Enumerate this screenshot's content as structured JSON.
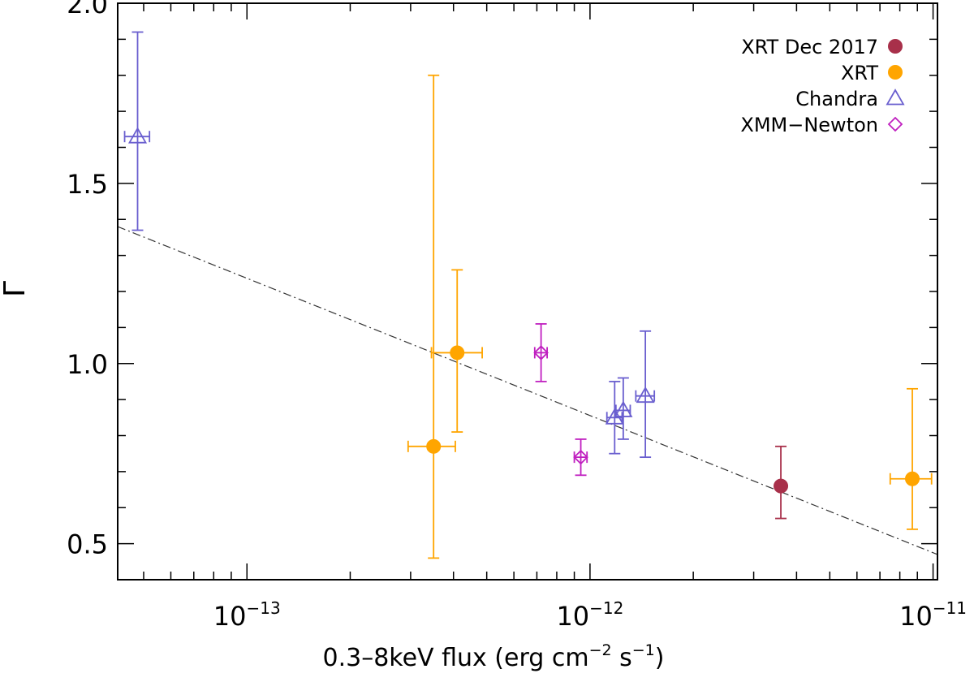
{
  "chart_data": {
    "type": "scatter",
    "title": "",
    "xlabel_main": "0.3–8keV flux (erg cm",
    "xlabel_exp1": "−2",
    "xlabel_mid": " s",
    "xlabel_exp2": "−1",
    "xlabel_tail": ")",
    "ylabel": "Γ",
    "xscale": "log",
    "xlim": [
      4.2e-14,
      1.03e-11
    ],
    "ylim": [
      0.4,
      2.0
    ],
    "xticks": [
      {
        "value": 1e-13,
        "base": "10",
        "exp": "−13"
      },
      {
        "value": 1e-12,
        "base": "10",
        "exp": "−12"
      },
      {
        "value": 1e-11,
        "base": "10",
        "exp": "−11"
      }
    ],
    "yticks": [
      {
        "value": 0.5,
        "label": "0.5"
      },
      {
        "value": 1.0,
        "label": "1.0"
      },
      {
        "value": 1.5,
        "label": "1.5"
      },
      {
        "value": 2.0,
        "label": "2.0"
      }
    ],
    "legend_position": "top-right",
    "series": [
      {
        "name": "XRT Dec 2017",
        "marker": "filled-circle",
        "color": "#a8304a",
        "points": [
          {
            "x": 3.6e-12,
            "xerr": [
              3.6e-12,
              3.6e-12
            ],
            "y": 0.66,
            "yerr": [
              0.57,
              0.77
            ]
          }
        ]
      },
      {
        "name": "XRT",
        "marker": "filled-circle",
        "color": "#ffa500",
        "points": [
          {
            "x": 3.5e-13,
            "xerr": [
              2.95e-13,
              4.05e-13
            ],
            "y": 0.77,
            "yerr": [
              0.46,
              1.8
            ]
          },
          {
            "x": 4.1e-13,
            "xerr": [
              3.45e-13,
              4.85e-13
            ],
            "y": 1.03,
            "yerr": [
              0.81,
              1.26
            ]
          },
          {
            "x": 8.7e-12,
            "xerr": [
              7.5e-12,
              9.9e-12
            ],
            "y": 0.68,
            "yerr": [
              0.54,
              0.93
            ]
          }
        ]
      },
      {
        "name": "Chandra",
        "marker": "open-triangle",
        "color": "#6a5fcf",
        "points": [
          {
            "x": 4.8e-14,
            "xerr": [
              4.4e-14,
              5.2e-14
            ],
            "y": 1.63,
            "yerr": [
              1.37,
              1.92
            ]
          },
          {
            "x": 1.18e-12,
            "xerr": [
              1.12e-12,
              1.24e-12
            ],
            "y": 0.85,
            "yerr": [
              0.75,
              0.95
            ]
          },
          {
            "x": 1.25e-12,
            "xerr": [
              1.19e-12,
              1.31e-12
            ],
            "y": 0.87,
            "yerr": [
              0.79,
              0.96
            ]
          },
          {
            "x": 1.45e-12,
            "xerr": [
              1.36e-12,
              1.54e-12
            ],
            "y": 0.91,
            "yerr": [
              0.74,
              1.09
            ]
          }
        ]
      },
      {
        "name": "XMM−Newton",
        "marker": "open-diamond",
        "color": "#c020c0",
        "points": [
          {
            "x": 7.2e-13,
            "xerr": [
              6.9e-13,
              7.5e-13
            ],
            "y": 1.03,
            "yerr": [
              0.95,
              1.11
            ]
          },
          {
            "x": 9.4e-13,
            "xerr": [
              9e-13,
              9.8e-13
            ],
            "y": 0.74,
            "yerr": [
              0.69,
              0.79
            ]
          }
        ]
      }
    ],
    "fit_line": {
      "style": "dash-dot",
      "color": "#333333",
      "points": [
        {
          "x": 4.2e-14,
          "y": 1.38
        },
        {
          "x": 1.03e-11,
          "y": 0.47
        }
      ]
    }
  }
}
